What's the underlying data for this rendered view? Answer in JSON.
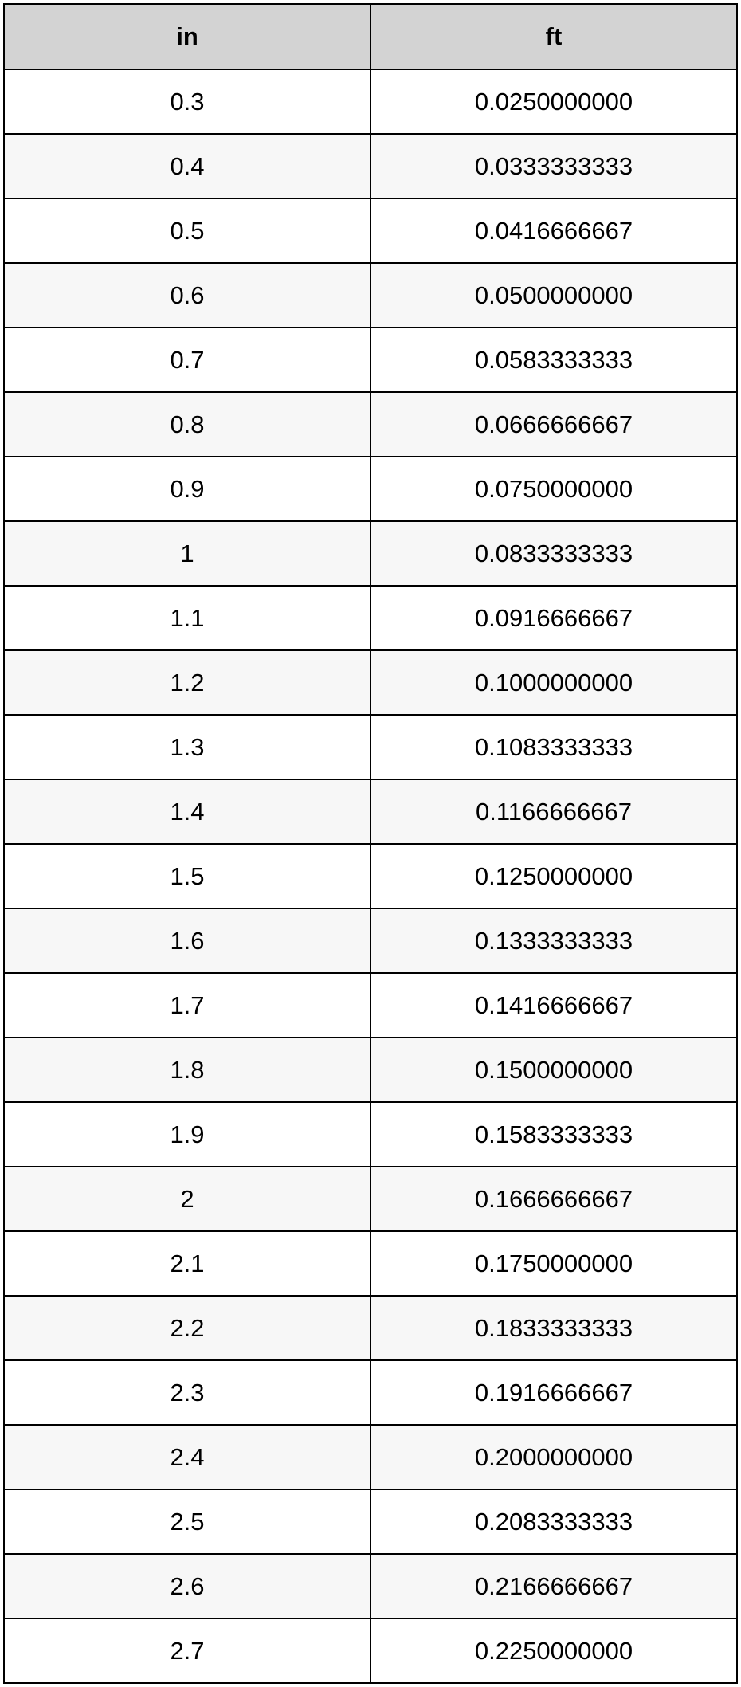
{
  "conversion_table": {
    "type": "table",
    "columns": [
      "in",
      "ft"
    ],
    "header_bg_color": "#d3d3d3",
    "border_color": "#000000",
    "even_row_bg": "#f7f7f7",
    "odd_row_bg": "#ffffff",
    "font_size": 31,
    "text_color": "#000000",
    "rows": [
      [
        "0.3",
        "0.0250000000"
      ],
      [
        "0.4",
        "0.0333333333"
      ],
      [
        "0.5",
        "0.0416666667"
      ],
      [
        "0.6",
        "0.0500000000"
      ],
      [
        "0.7",
        "0.0583333333"
      ],
      [
        "0.8",
        "0.0666666667"
      ],
      [
        "0.9",
        "0.0750000000"
      ],
      [
        "1",
        "0.0833333333"
      ],
      [
        "1.1",
        "0.0916666667"
      ],
      [
        "1.2",
        "0.1000000000"
      ],
      [
        "1.3",
        "0.1083333333"
      ],
      [
        "1.4",
        "0.1166666667"
      ],
      [
        "1.5",
        "0.1250000000"
      ],
      [
        "1.6",
        "0.1333333333"
      ],
      [
        "1.7",
        "0.1416666667"
      ],
      [
        "1.8",
        "0.1500000000"
      ],
      [
        "1.9",
        "0.1583333333"
      ],
      [
        "2",
        "0.1666666667"
      ],
      [
        "2.1",
        "0.1750000000"
      ],
      [
        "2.2",
        "0.1833333333"
      ],
      [
        "2.3",
        "0.1916666667"
      ],
      [
        "2.4",
        "0.2000000000"
      ],
      [
        "2.5",
        "0.2083333333"
      ],
      [
        "2.6",
        "0.2166666667"
      ],
      [
        "2.7",
        "0.2250000000"
      ]
    ]
  }
}
